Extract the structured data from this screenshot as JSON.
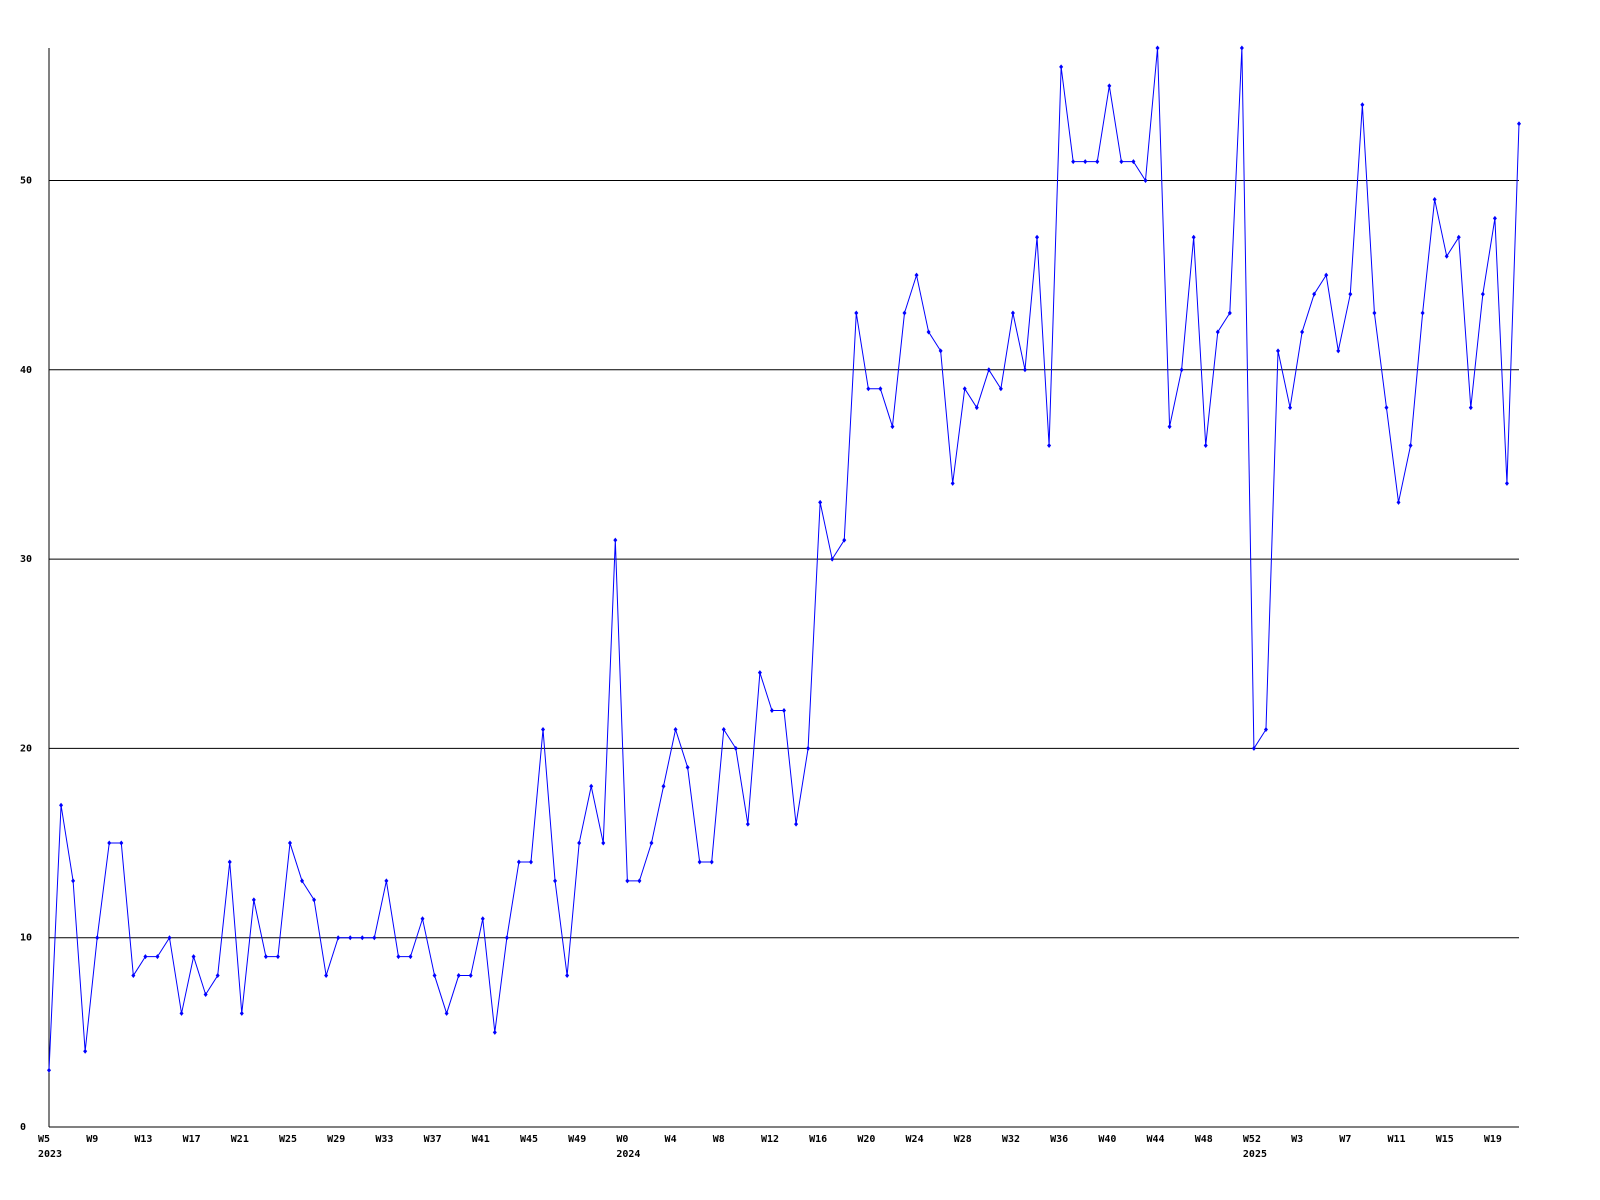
{
  "chart_data": {
    "type": "line",
    "categories": [
      "W5",
      null,
      null,
      null,
      "W9",
      null,
      null,
      null,
      "W13",
      null,
      null,
      null,
      "W17",
      null,
      null,
      null,
      "W21",
      null,
      null,
      null,
      "W25",
      null,
      null,
      null,
      "W29",
      null,
      null,
      null,
      "W33",
      null,
      null,
      null,
      "W37",
      null,
      null,
      null,
      "W41",
      null,
      null,
      null,
      "W45",
      null,
      null,
      null,
      "W49",
      null,
      null,
      null,
      "W0",
      null,
      null,
      null,
      "W4",
      null,
      null,
      null,
      "W8",
      null,
      null,
      null,
      "W12",
      null,
      null,
      null,
      "W16",
      null,
      null,
      null,
      "W20",
      null,
      null,
      null,
      "W24",
      null,
      null,
      null,
      "W28",
      null,
      null,
      null,
      "W32",
      null,
      null,
      null,
      "W36",
      null,
      null,
      null,
      "W40",
      null,
      null,
      null,
      "W44",
      null,
      null,
      null,
      "W48",
      null,
      null,
      null,
      "W52",
      null,
      null,
      null,
      "W3",
      null,
      null,
      null,
      "W7",
      null,
      null,
      null,
      "W11",
      null,
      null,
      null,
      "W15",
      null,
      null,
      null,
      "W19",
      null,
      null
    ],
    "year_labels": [
      "2023",
      null,
      null,
      null,
      null,
      null,
      null,
      null,
      null,
      null,
      null,
      null,
      null,
      null,
      null,
      null,
      null,
      null,
      null,
      null,
      null,
      null,
      null,
      null,
      null,
      null,
      null,
      null,
      null,
      null,
      null,
      null,
      null,
      null,
      null,
      null,
      null,
      null,
      null,
      null,
      null,
      null,
      null,
      null,
      null,
      null,
      null,
      null,
      "2024",
      null,
      null,
      null,
      null,
      null,
      null,
      null,
      null,
      null,
      null,
      null,
      null,
      null,
      null,
      null,
      null,
      null,
      null,
      null,
      null,
      null,
      null,
      null,
      null,
      null,
      null,
      null,
      null,
      null,
      null,
      null,
      null,
      null,
      null,
      null,
      null,
      null,
      null,
      null,
      null,
      null,
      null,
      null,
      null,
      null,
      null,
      null,
      null,
      null,
      null,
      null,
      "2025",
      null,
      null,
      null,
      null,
      null,
      null,
      null,
      null,
      null,
      null,
      null,
      null,
      null,
      null,
      null,
      null,
      null,
      null,
      null,
      null,
      null
    ],
    "series": [
      {
        "color": "#0000ff",
        "values": [
          3,
          17,
          13,
          4,
          10,
          15,
          15,
          8,
          9,
          9,
          10,
          6,
          9,
          7,
          8,
          14,
          6,
          12,
          9,
          9,
          15,
          13,
          12,
          8,
          10,
          10,
          10,
          10,
          13,
          9,
          9,
          11,
          8,
          6,
          8,
          8,
          11,
          5,
          10,
          14,
          14,
          21,
          13,
          8,
          15,
          18,
          15,
          31,
          13,
          13,
          15,
          18,
          21,
          19,
          14,
          14,
          21,
          20,
          16,
          24,
          22,
          22,
          16,
          20,
          33,
          30,
          31,
          43,
          39,
          39,
          37,
          43,
          45,
          42,
          41,
          34,
          39,
          38,
          40,
          39,
          43,
          40,
          47,
          36,
          56,
          51,
          51,
          51,
          55,
          51,
          51,
          50,
          57,
          37,
          40,
          47,
          36,
          42,
          43,
          57,
          20,
          21,
          41,
          38,
          42,
          44,
          45,
          41,
          44,
          54,
          43,
          38,
          33,
          36,
          43,
          49,
          46,
          47,
          38,
          44,
          48,
          34,
          53
        ]
      }
    ],
    "ylim": [
      0,
      57
    ],
    "yticks": [
      0,
      10,
      20,
      30,
      40,
      50
    ],
    "grid": true
  }
}
